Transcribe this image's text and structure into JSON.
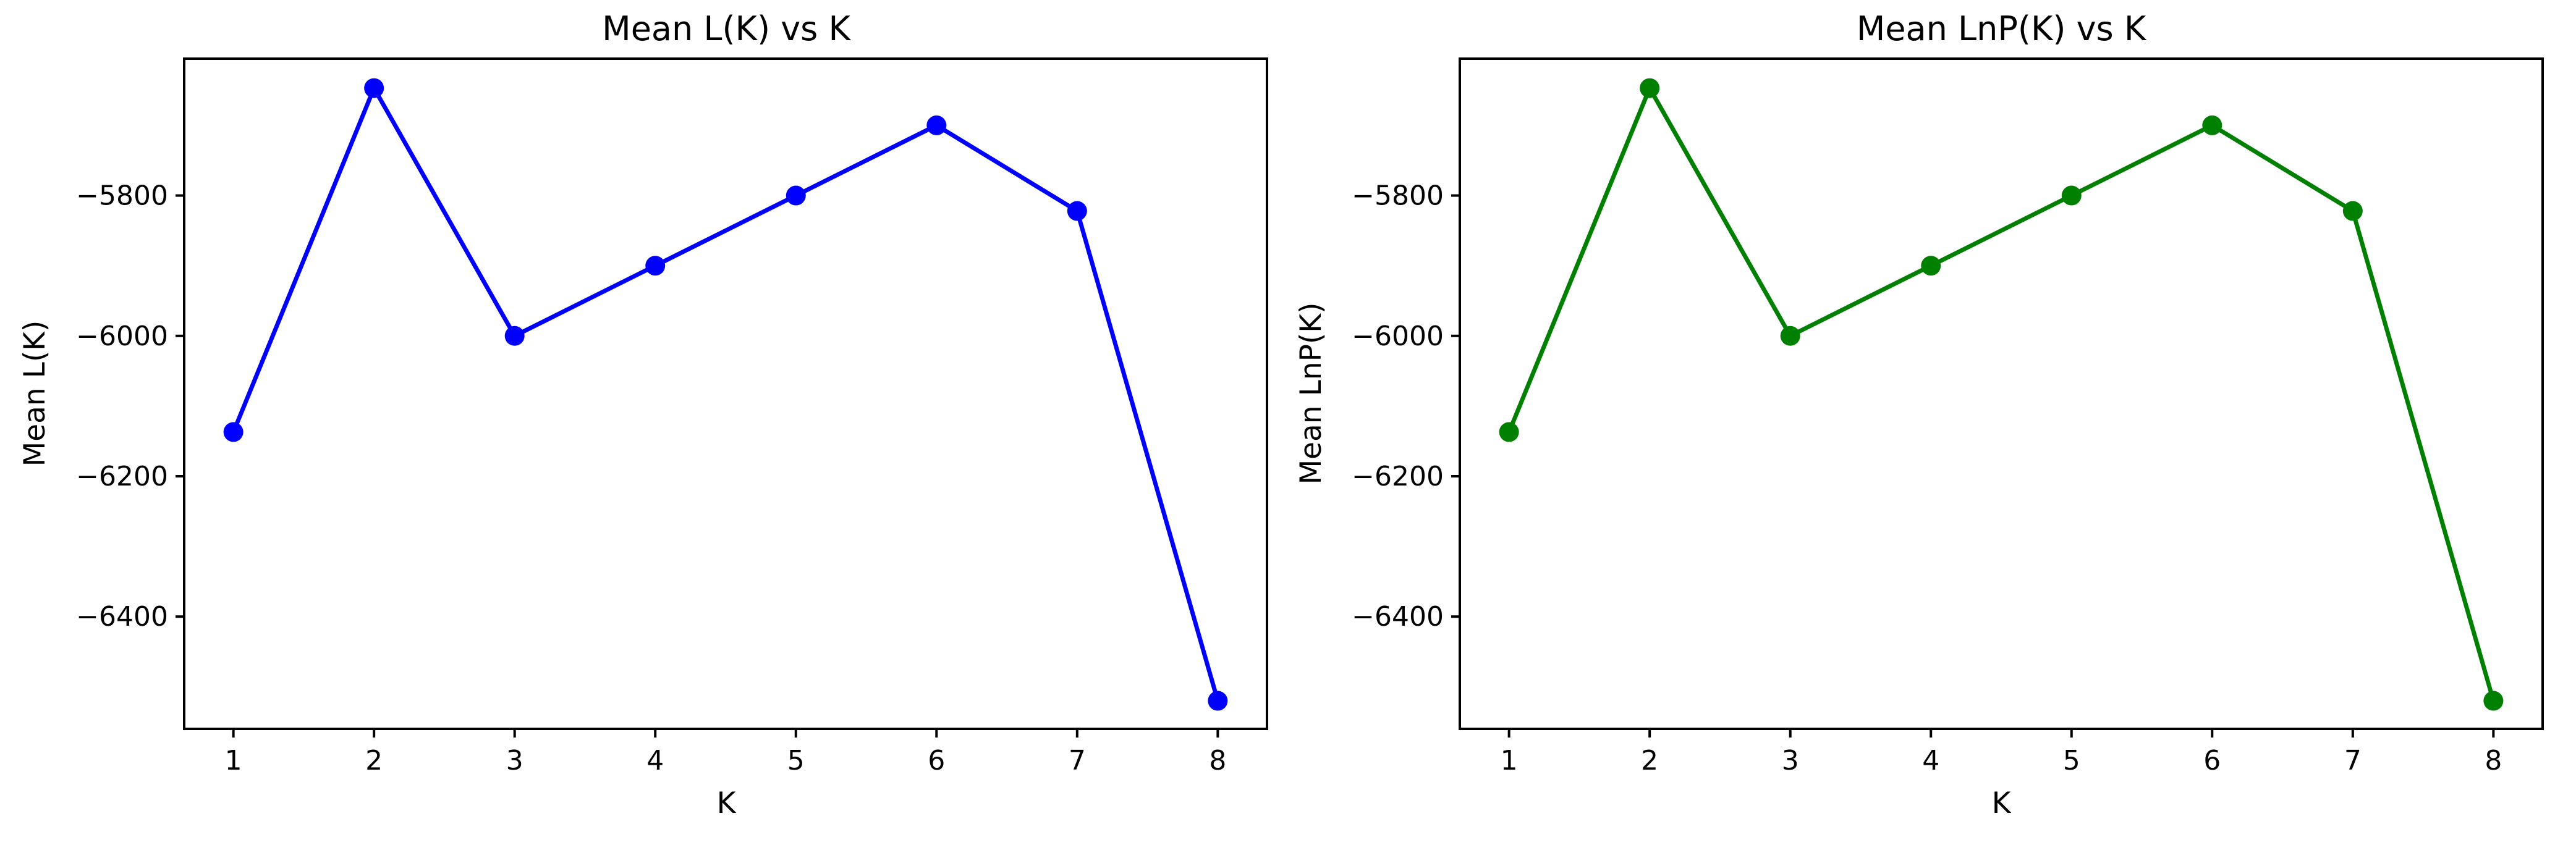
{
  "chart_data": [
    {
      "type": "line",
      "title": "Mean L(K) vs K",
      "xlabel": "K",
      "ylabel": "Mean L(K)",
      "x": [
        1,
        2,
        3,
        4,
        5,
        6,
        7,
        8
      ],
      "xticks": [
        "1",
        "2",
        "3",
        "4",
        "5",
        "6",
        "7",
        "8"
      ],
      "yticks": [
        -5800,
        -6000,
        -6200,
        -6400
      ],
      "ytick_labels": [
        "−5800",
        "−6000",
        "−6200",
        "−6400"
      ],
      "xlim": [
        0.65,
        8.35
      ],
      "ylim": [
        -6560,
        -5605
      ],
      "series": [
        {
          "values": [
            -6137,
            -5647,
            -6000,
            -5900,
            -5800,
            -5700,
            -5822,
            -6520
          ],
          "color": "#0000ff",
          "marker": "circle"
        }
      ],
      "grid": false,
      "legend": false
    },
    {
      "type": "line",
      "title": "Mean LnP(K) vs K",
      "xlabel": "K",
      "ylabel": "Mean LnP(K)",
      "x": [
        1,
        2,
        3,
        4,
        5,
        6,
        7,
        8
      ],
      "xticks": [
        "1",
        "2",
        "3",
        "4",
        "5",
        "6",
        "7",
        "8"
      ],
      "yticks": [
        -5800,
        -6000,
        -6200,
        -6400
      ],
      "ytick_labels": [
        "−5800",
        "−6000",
        "−6200",
        "−6400"
      ],
      "xlim": [
        0.65,
        8.35
      ],
      "ylim": [
        -6560,
        -5605
      ],
      "series": [
        {
          "values": [
            -6137,
            -5647,
            -6000,
            -5900,
            -5800,
            -5700,
            -5822,
            -6520
          ],
          "color": "#008000",
          "marker": "circle"
        }
      ],
      "grid": false,
      "legend": false
    }
  ]
}
